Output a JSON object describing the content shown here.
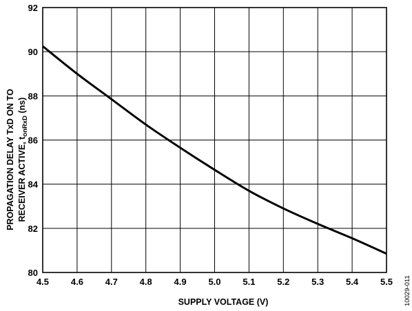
{
  "chart_data": {
    "type": "line",
    "xlabel": "SUPPLY VOLTAGE (V)",
    "ylabel_line1": "PROPAGATION DELAY TxD ON TO",
    "ylabel_line2_main": "RECEIVER ACTIVE, t",
    "ylabel_line2_sub": "onRxD",
    "ylabel_line2_unit": " (ns)",
    "figure_id": "10029-011",
    "xlim": [
      4.5,
      5.5
    ],
    "ylim": [
      80,
      92
    ],
    "x_ticks": [
      "4.5",
      "4.6",
      "4.7",
      "4.8",
      "4.9",
      "5.0",
      "5.1",
      "5.2",
      "5.3",
      "5.4",
      "5.5"
    ],
    "y_ticks": [
      "80",
      "82",
      "84",
      "86",
      "88",
      "90",
      "92"
    ],
    "grid": true,
    "series": [
      {
        "x": [
          4.5,
          4.6,
          4.7,
          4.8,
          4.9,
          5.0,
          5.1,
          5.2,
          5.3,
          5.4,
          5.5
        ],
        "y": [
          90.25,
          89.0,
          87.85,
          86.7,
          85.65,
          84.65,
          83.7,
          82.9,
          82.2,
          81.55,
          80.85
        ]
      }
    ]
  }
}
